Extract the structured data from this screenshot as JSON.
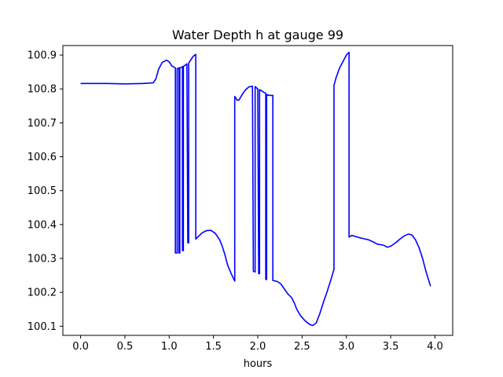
{
  "chart_data": {
    "type": "line",
    "title": "Water Depth h at gauge 99",
    "xlabel": "hours",
    "ylabel": "",
    "xlim": [
      -0.2,
      4.2
    ],
    "ylim": [
      100.073,
      100.928
    ],
    "xticks": [
      0.0,
      0.5,
      1.0,
      1.5,
      2.0,
      2.5,
      3.0,
      3.5,
      4.0
    ],
    "xtick_labels": [
      "0.0",
      "0.5",
      "1.0",
      "1.5",
      "2.0",
      "2.5",
      "3.0",
      "3.5",
      "4.0"
    ],
    "yticks": [
      100.1,
      100.2,
      100.3,
      100.4,
      100.5,
      100.6,
      100.7,
      100.8,
      100.9
    ],
    "ytick_labels": [
      "100.1",
      "100.2",
      "100.3",
      "100.4",
      "100.5",
      "100.6",
      "100.7",
      "100.8",
      "100.9"
    ],
    "grid": false,
    "legend": "none",
    "series": [
      {
        "color": "#0000ff",
        "points": [
          [
            0.0,
            100.816
          ],
          [
            0.3,
            100.816
          ],
          [
            0.5,
            100.815
          ],
          [
            0.7,
            100.816
          ],
          [
            0.82,
            100.818
          ],
          [
            0.85,
            100.83
          ],
          [
            0.88,
            100.858
          ],
          [
            0.92,
            100.878
          ],
          [
            0.97,
            100.885
          ],
          [
            1.0,
            100.88
          ],
          [
            1.03,
            100.868
          ],
          [
            1.07,
            100.862
          ],
          [
            1.07,
            100.316
          ],
          [
            1.09,
            100.316
          ],
          [
            1.09,
            100.86
          ],
          [
            1.11,
            100.862
          ],
          [
            1.11,
            100.316
          ],
          [
            1.12,
            100.316
          ],
          [
            1.12,
            100.862
          ],
          [
            1.14,
            100.864
          ],
          [
            1.15,
            100.866
          ],
          [
            1.15,
            100.323
          ],
          [
            1.16,
            100.323
          ],
          [
            1.16,
            100.866
          ],
          [
            1.2,
            100.874
          ],
          [
            1.21,
            100.346
          ],
          [
            1.22,
            100.346
          ],
          [
            1.22,
            100.876
          ],
          [
            1.25,
            100.888
          ],
          [
            1.27,
            100.896
          ],
          [
            1.29,
            100.9
          ],
          [
            1.3,
            100.902
          ],
          [
            1.3,
            100.357
          ],
          [
            1.33,
            100.365
          ],
          [
            1.37,
            100.375
          ],
          [
            1.42,
            100.382
          ],
          [
            1.47,
            100.383
          ],
          [
            1.52,
            100.374
          ],
          [
            1.57,
            100.355
          ],
          [
            1.6,
            100.335
          ],
          [
            1.63,
            100.31
          ],
          [
            1.66,
            100.28
          ],
          [
            1.7,
            100.255
          ],
          [
            1.74,
            100.233
          ],
          [
            1.74,
            100.778
          ],
          [
            1.77,
            100.766
          ],
          [
            1.79,
            100.768
          ],
          [
            1.82,
            100.782
          ],
          [
            1.86,
            100.797
          ],
          [
            1.9,
            100.806
          ],
          [
            1.94,
            100.808
          ],
          [
            1.95,
            100.262
          ],
          [
            1.97,
            100.26
          ],
          [
            1.97,
            100.807
          ],
          [
            2.0,
            100.8
          ],
          [
            2.01,
            100.255
          ],
          [
            2.02,
            100.255
          ],
          [
            2.02,
            100.798
          ],
          [
            2.07,
            100.79
          ],
          [
            2.09,
            100.787
          ],
          [
            2.09,
            100.238
          ],
          [
            2.1,
            100.238
          ],
          [
            2.1,
            100.783
          ],
          [
            2.13,
            100.781
          ],
          [
            2.17,
            100.781
          ],
          [
            2.17,
            100.235
          ],
          [
            2.22,
            100.232
          ],
          [
            2.26,
            100.225
          ],
          [
            2.3,
            100.21
          ],
          [
            2.34,
            100.195
          ],
          [
            2.38,
            100.185
          ],
          [
            2.41,
            100.17
          ],
          [
            2.44,
            100.15
          ],
          [
            2.48,
            100.132
          ],
          [
            2.53,
            100.117
          ],
          [
            2.58,
            100.106
          ],
          [
            2.62,
            100.102
          ],
          [
            2.66,
            100.11
          ],
          [
            2.7,
            100.137
          ],
          [
            2.74,
            100.17
          ],
          [
            2.78,
            100.2
          ],
          [
            2.82,
            100.233
          ],
          [
            2.86,
            100.268
          ],
          [
            2.86,
            100.81
          ],
          [
            2.88,
            100.83
          ],
          [
            2.92,
            100.86
          ],
          [
            2.96,
            100.88
          ],
          [
            3.0,
            100.9
          ],
          [
            3.03,
            100.908
          ],
          [
            3.03,
            100.363
          ],
          [
            3.06,
            100.368
          ],
          [
            3.1,
            100.365
          ],
          [
            3.15,
            100.361
          ],
          [
            3.2,
            100.358
          ],
          [
            3.25,
            100.355
          ],
          [
            3.3,
            100.349
          ],
          [
            3.35,
            100.342
          ],
          [
            3.4,
            100.34
          ],
          [
            3.43,
            100.338
          ],
          [
            3.46,
            100.333
          ],
          [
            3.5,
            100.336
          ],
          [
            3.55,
            100.345
          ],
          [
            3.6,
            100.356
          ],
          [
            3.65,
            100.366
          ],
          [
            3.7,
            100.372
          ],
          [
            3.74,
            100.369
          ],
          [
            3.78,
            100.355
          ],
          [
            3.82,
            100.332
          ],
          [
            3.86,
            100.3
          ],
          [
            3.9,
            100.26
          ],
          [
            3.95,
            100.218
          ]
        ]
      }
    ]
  }
}
